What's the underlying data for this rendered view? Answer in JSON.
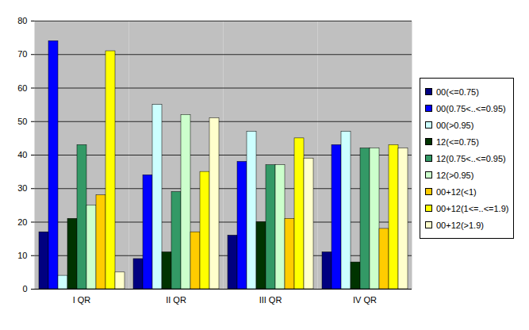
{
  "chart_data": {
    "type": "bar",
    "categories": [
      "I QR",
      "II QR",
      "III QR",
      "IV QR"
    ],
    "series": [
      {
        "name": "00(<=0.75)",
        "color": "#000080",
        "values": [
          17,
          9,
          16,
          11
        ]
      },
      {
        "name": "00(0.75<..<=0.95)",
        "color": "#0000ff",
        "values": [
          74,
          34,
          38,
          43
        ]
      },
      {
        "name": "00(>0.95)",
        "color": "#ccffff",
        "values": [
          4,
          55,
          47,
          47
        ]
      },
      {
        "name": "12(<=0.75)",
        "color": "#003300",
        "values": [
          21,
          11,
          20,
          8
        ]
      },
      {
        "name": "12(0.75<..<=0.95)",
        "color": "#339966",
        "values": [
          43,
          29,
          37,
          42
        ]
      },
      {
        "name": "12(>0.95)",
        "color": "#ccffcc",
        "values": [
          25,
          52,
          37,
          42
        ]
      },
      {
        "name": "00+12(<1)",
        "color": "#ffcc00",
        "values": [
          28,
          17,
          21,
          18
        ]
      },
      {
        "name": "00+12(1<=..<=1.9)",
        "color": "#ffff00",
        "values": [
          71,
          35,
          45,
          43
        ]
      },
      {
        "name": "00+12(>1.9)",
        "color": "#ffffcc",
        "values": [
          5,
          51,
          39,
          42
        ]
      }
    ],
    "ylim": [
      0,
      80
    ],
    "yticks": [
      0,
      10,
      20,
      30,
      40,
      50,
      60,
      70,
      80
    ],
    "grid": true,
    "legend": "right"
  }
}
